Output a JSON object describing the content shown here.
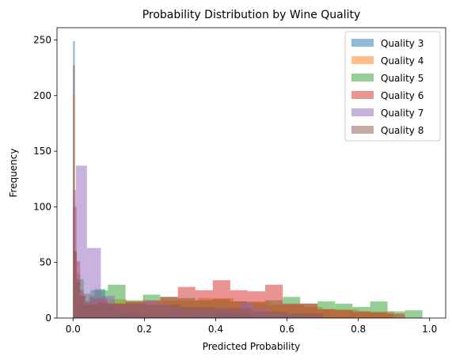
{
  "chart_data": {
    "type": "bar",
    "subtype": "overlaid-histogram",
    "title": "Probability Distribution by Wine Quality",
    "xlabel": "Predicted Probability",
    "ylabel": "Frequency",
    "xlim": [
      -0.045,
      1.045
    ],
    "ylim": [
      0,
      261
    ],
    "xticks": [
      0.0,
      0.2,
      0.4,
      0.6,
      0.8,
      1.0
    ],
    "xtick_labels": [
      "0.0",
      "0.2",
      "0.4",
      "0.6",
      "0.8",
      "1.0"
    ],
    "yticks": [
      0,
      50,
      100,
      150,
      200,
      250
    ],
    "ytick_labels": [
      "0",
      "50",
      "100",
      "150",
      "200",
      "250"
    ],
    "grid": false,
    "legend_position": "top-right",
    "bar_alpha": 0.5,
    "series": [
      {
        "name": "Quality 3",
        "color": "#1f77b4",
        "bins": [
          [
            0.0,
            0.005,
            249
          ],
          [
            0.005,
            0.01,
            35
          ],
          [
            0.01,
            0.015,
            12
          ],
          [
            0.015,
            0.02,
            8
          ],
          [
            0.02,
            0.03,
            10
          ],
          [
            0.03,
            0.045,
            12
          ],
          [
            0.045,
            0.06,
            20
          ],
          [
            0.06,
            0.09,
            26
          ],
          [
            0.09,
            0.12,
            10
          ],
          [
            0.12,
            0.2,
            4
          ],
          [
            0.2,
            0.4,
            2
          ],
          [
            0.4,
            0.5,
            4
          ],
          [
            0.5,
            0.7,
            1
          ]
        ]
      },
      {
        "name": "Quality 4",
        "color": "#ff7f0e",
        "bins": [
          [
            0.0,
            0.005,
            200
          ],
          [
            0.005,
            0.01,
            60
          ],
          [
            0.01,
            0.02,
            40
          ],
          [
            0.02,
            0.035,
            20
          ],
          [
            0.035,
            0.06,
            14
          ],
          [
            0.06,
            0.1,
            12
          ],
          [
            0.1,
            0.15,
            17
          ],
          [
            0.15,
            0.2,
            14
          ],
          [
            0.2,
            0.25,
            15
          ],
          [
            0.25,
            0.35,
            16
          ],
          [
            0.35,
            0.45,
            18
          ],
          [
            0.45,
            0.55,
            15
          ],
          [
            0.55,
            0.65,
            12
          ],
          [
            0.65,
            0.7,
            10
          ],
          [
            0.7,
            0.8,
            8
          ],
          [
            0.8,
            0.9,
            6
          ]
        ]
      },
      {
        "name": "Quality 5",
        "color": "#2ca02c",
        "bins": [
          [
            0.0,
            0.01,
            60
          ],
          [
            0.01,
            0.03,
            35
          ],
          [
            0.03,
            0.049,
            22
          ],
          [
            0.049,
            0.098,
            25
          ],
          [
            0.098,
            0.147,
            30
          ],
          [
            0.147,
            0.196,
            16
          ],
          [
            0.196,
            0.245,
            21
          ],
          [
            0.245,
            0.294,
            19
          ],
          [
            0.294,
            0.343,
            18
          ],
          [
            0.343,
            0.392,
            16
          ],
          [
            0.392,
            0.441,
            17
          ],
          [
            0.441,
            0.49,
            15
          ],
          [
            0.49,
            0.539,
            14
          ],
          [
            0.539,
            0.588,
            16
          ],
          [
            0.588,
            0.637,
            19
          ],
          [
            0.637,
            0.686,
            13
          ],
          [
            0.686,
            0.735,
            15
          ],
          [
            0.735,
            0.784,
            13
          ],
          [
            0.784,
            0.833,
            10
          ],
          [
            0.833,
            0.882,
            15
          ],
          [
            0.882,
            0.931,
            6
          ],
          [
            0.931,
            0.98,
            7
          ]
        ]
      },
      {
        "name": "Quality 6",
        "color": "#d62728",
        "bins": [
          [
            0.0,
            0.01,
            100
          ],
          [
            0.01,
            0.02,
            51
          ],
          [
            0.02,
            0.03,
            25
          ],
          [
            0.03,
            0.049,
            12
          ],
          [
            0.049,
            0.098,
            18
          ],
          [
            0.098,
            0.147,
            13
          ],
          [
            0.147,
            0.196,
            15
          ],
          [
            0.196,
            0.245,
            16
          ],
          [
            0.245,
            0.294,
            19
          ],
          [
            0.294,
            0.343,
            28
          ],
          [
            0.343,
            0.392,
            25
          ],
          [
            0.392,
            0.441,
            34
          ],
          [
            0.441,
            0.49,
            25
          ],
          [
            0.49,
            0.539,
            24
          ],
          [
            0.539,
            0.588,
            30
          ],
          [
            0.588,
            0.637,
            13
          ],
          [
            0.637,
            0.686,
            13
          ],
          [
            0.686,
            0.735,
            8
          ],
          [
            0.735,
            0.784,
            7
          ],
          [
            0.784,
            0.833,
            6
          ],
          [
            0.833,
            0.882,
            5
          ],
          [
            0.882,
            0.931,
            4
          ]
        ]
      },
      {
        "name": "Quality 7",
        "color": "#9467bd",
        "bins": [
          [
            0.0,
            0.008,
            115
          ],
          [
            0.008,
            0.039,
            137
          ],
          [
            0.039,
            0.078,
            63
          ],
          [
            0.078,
            0.117,
            20
          ],
          [
            0.117,
            0.156,
            11
          ],
          [
            0.156,
            0.195,
            12
          ],
          [
            0.195,
            0.234,
            15
          ],
          [
            0.234,
            0.273,
            12
          ],
          [
            0.273,
            0.312,
            10
          ],
          [
            0.312,
            0.351,
            8
          ],
          [
            0.351,
            0.39,
            7
          ],
          [
            0.39,
            0.429,
            9
          ],
          [
            0.429,
            0.468,
            6
          ],
          [
            0.468,
            0.507,
            14
          ],
          [
            0.507,
            0.546,
            8
          ],
          [
            0.546,
            0.585,
            4
          ],
          [
            0.585,
            0.624,
            3
          ],
          [
            0.624,
            0.663,
            2
          ],
          [
            0.663,
            0.702,
            2
          ]
        ]
      },
      {
        "name": "Quality 8",
        "color": "#8c564b",
        "bins": [
          [
            0.0,
            0.005,
            227
          ],
          [
            0.005,
            0.01,
            60
          ],
          [
            0.01,
            0.02,
            33
          ],
          [
            0.02,
            0.035,
            20
          ],
          [
            0.035,
            0.05,
            15
          ],
          [
            0.05,
            0.07,
            12
          ],
          [
            0.07,
            0.1,
            14
          ],
          [
            0.1,
            0.2,
            13
          ],
          [
            0.2,
            0.3,
            12
          ],
          [
            0.3,
            0.4,
            10
          ],
          [
            0.4,
            0.5,
            9
          ],
          [
            0.5,
            0.6,
            6
          ],
          [
            0.6,
            0.7,
            4
          ]
        ]
      }
    ]
  }
}
